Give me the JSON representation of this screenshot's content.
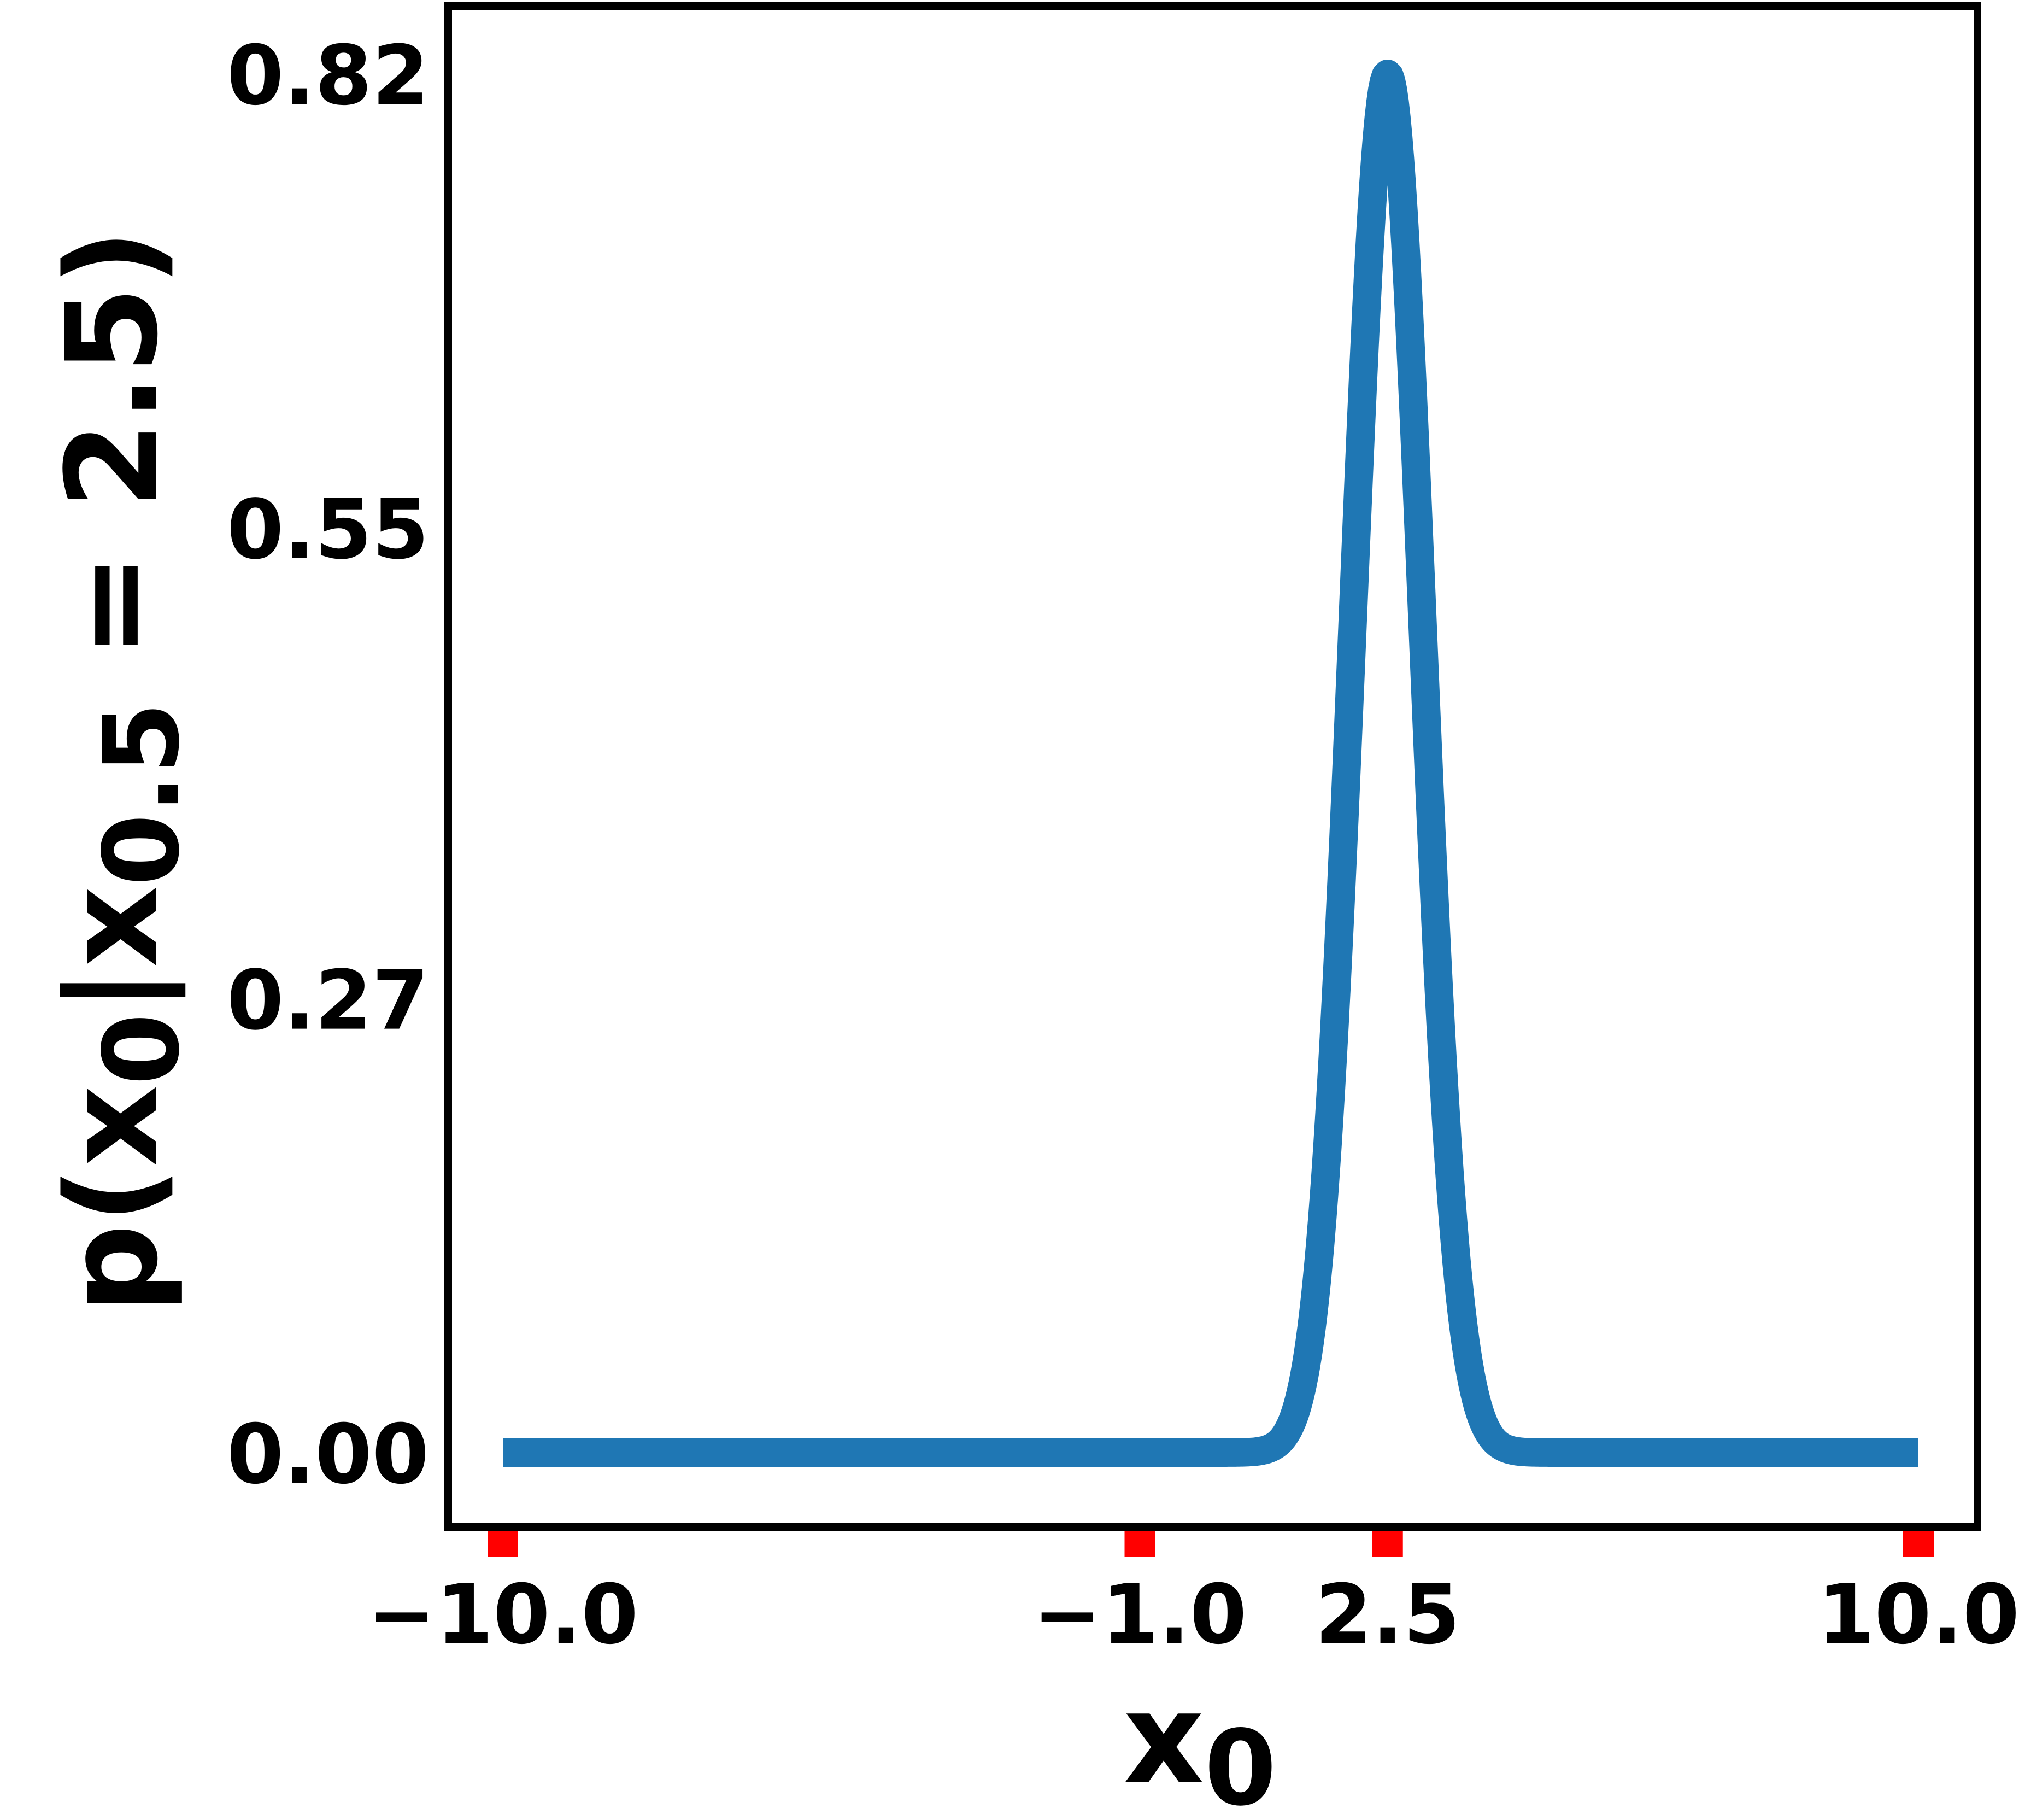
{
  "chart_data": {
    "type": "line",
    "title": "",
    "xlabel": "x",
    "xlabel_sub": "0",
    "ylabel": "p(x",
    "ylabel_parts": [
      "p(x",
      "0",
      "|x",
      "0.5",
      " = 2.5)"
    ],
    "xlim": [
      -10.0,
      10.0
    ],
    "ylim": [
      0.0,
      0.82
    ],
    "x_ticks": [
      -10.0,
      -1.0,
      2.5,
      10.0
    ],
    "x_tick_labels": [
      "−10.0",
      "−1.0",
      "2.5",
      "10.0"
    ],
    "y_ticks": [
      0.0,
      0.27,
      0.55,
      0.82
    ],
    "y_tick_labels": [
      "0.00",
      "0.27",
      "0.55",
      "0.82"
    ],
    "grid": false,
    "legend": "none",
    "series": [
      {
        "curve": "gaussian",
        "mean": 2.5,
        "std": 0.49,
        "peak": 0.82,
        "baseline": 0.0
      }
    ],
    "colors": {
      "line": "#1f77b4",
      "tick_marks": "#ff0000",
      "frame": "#000000"
    }
  }
}
